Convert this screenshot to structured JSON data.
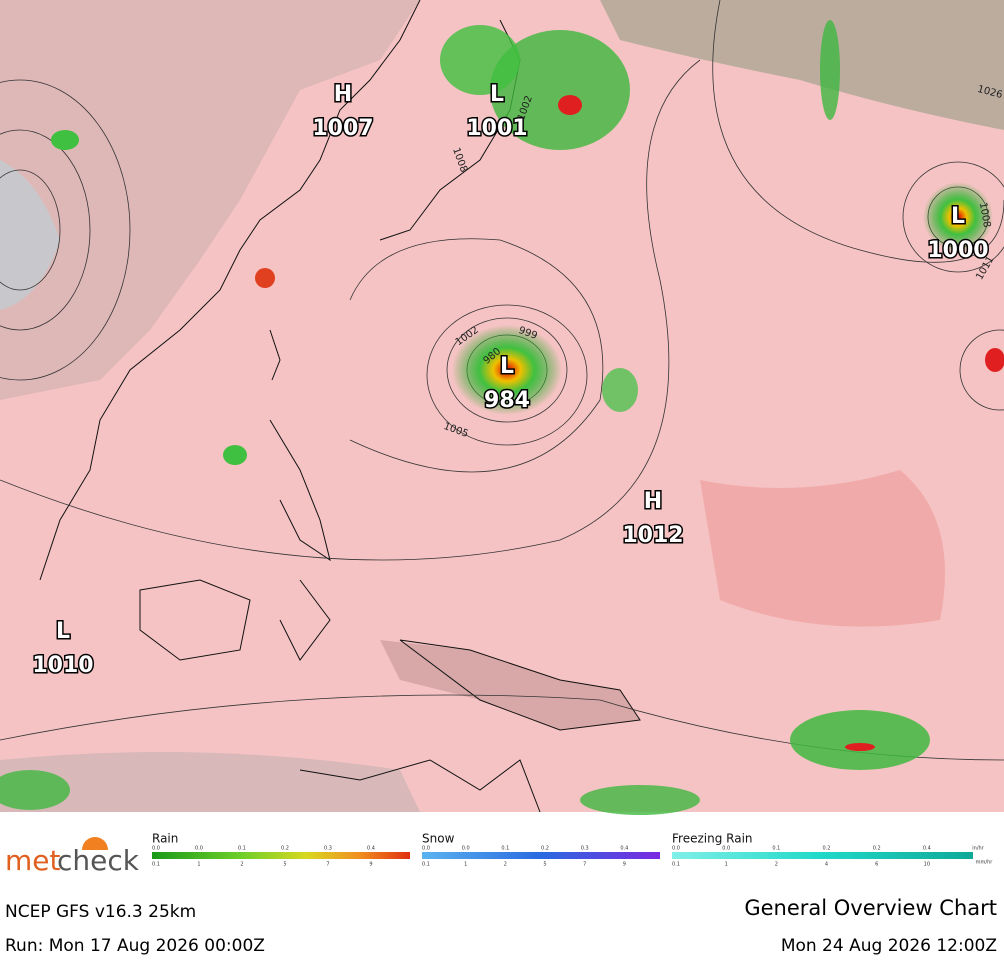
{
  "map": {
    "pressure_centers": [
      {
        "symbol": "H",
        "value": 1007
      },
      {
        "symbol": "L",
        "value": 1001
      },
      {
        "symbol": "L",
        "value": 1000
      },
      {
        "symbol": "L",
        "value": 984
      },
      {
        "symbol": "H",
        "value": 1012
      },
      {
        "symbol": "L",
        "value": 1010
      }
    ],
    "isobar_labels": [
      1002,
      999,
      980,
      1005,
      1008,
      1002,
      1026,
      1008,
      1011
    ]
  },
  "legend": {
    "items": [
      {
        "title": "Rain",
        "top": [
          "0.0",
          "0.0",
          "0.1",
          "0.2",
          "0.3",
          "0.4"
        ],
        "bottom": [
          "0.1",
          "1",
          "2",
          "5",
          "7",
          "9"
        ]
      },
      {
        "title": "Snow",
        "top": [
          "0.0",
          "0.0",
          "0.1",
          "0.2",
          "0.3",
          "0.4"
        ],
        "bottom": [
          "0.1",
          "1",
          "2",
          "5",
          "7",
          "9"
        ]
      },
      {
        "title": "Freezing Rain",
        "top": [
          "0.0",
          "0.0",
          "0.1",
          "0.2",
          "0.2",
          "0.4"
        ],
        "bottom": [
          "0.1",
          "1",
          "2",
          "4",
          "6",
          "10"
        ]
      }
    ],
    "units_top": "in/hr",
    "units_bottom": "mm/hr"
  },
  "logo": [
    "met",
    "check"
  ],
  "footer": {
    "model": "NCEP GFS v16.3 25km",
    "chart": "General Overview Chart",
    "run": "Run: Mon 17 Aug 2026 00:00Z",
    "valid": "Mon 24 Aug 2026 12:00Z"
  }
}
